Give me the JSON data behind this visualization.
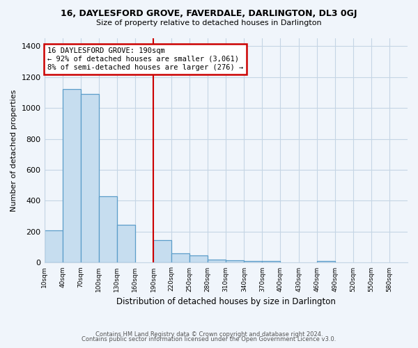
{
  "title": "16, DAYLESFORD GROVE, FAVERDALE, DARLINGTON, DL3 0GJ",
  "subtitle": "Size of property relative to detached houses in Darlington",
  "xlabel": "Distribution of detached houses by size in Darlington",
  "ylabel": "Number of detached properties",
  "bar_color": "#c6ddef",
  "bar_edge_color": "#5b9dc9",
  "background_color": "#f0f5fb",
  "grid_color": "#c5d5e5",
  "annotation_box_color": "#ffffff",
  "annotation_border_color": "#cc0000",
  "vline_color": "#cc0000",
  "annotation_line1": "16 DAYLESFORD GROVE: 190sqm",
  "annotation_line2": "← 92% of detached houses are smaller (3,061)",
  "annotation_line3": "8% of semi-detached houses are larger (276) →",
  "property_size_sqm": 190,
  "bin_edges": [
    10,
    40,
    70,
    100,
    130,
    160,
    190,
    220,
    250,
    280,
    310,
    340,
    370,
    400,
    430,
    460,
    490,
    520,
    550,
    580,
    610
  ],
  "bar_heights": [
    210,
    1120,
    1090,
    430,
    245,
    0,
    145,
    60,
    45,
    20,
    15,
    10,
    10,
    0,
    0,
    10,
    0,
    0,
    0,
    0
  ],
  "ylim": [
    0,
    1450
  ],
  "yticks": [
    0,
    200,
    400,
    600,
    800,
    1000,
    1200,
    1400
  ],
  "footer1": "Contains HM Land Registry data © Crown copyright and database right 2024.",
  "footer2": "Contains public sector information licensed under the Open Government Licence v3.0."
}
